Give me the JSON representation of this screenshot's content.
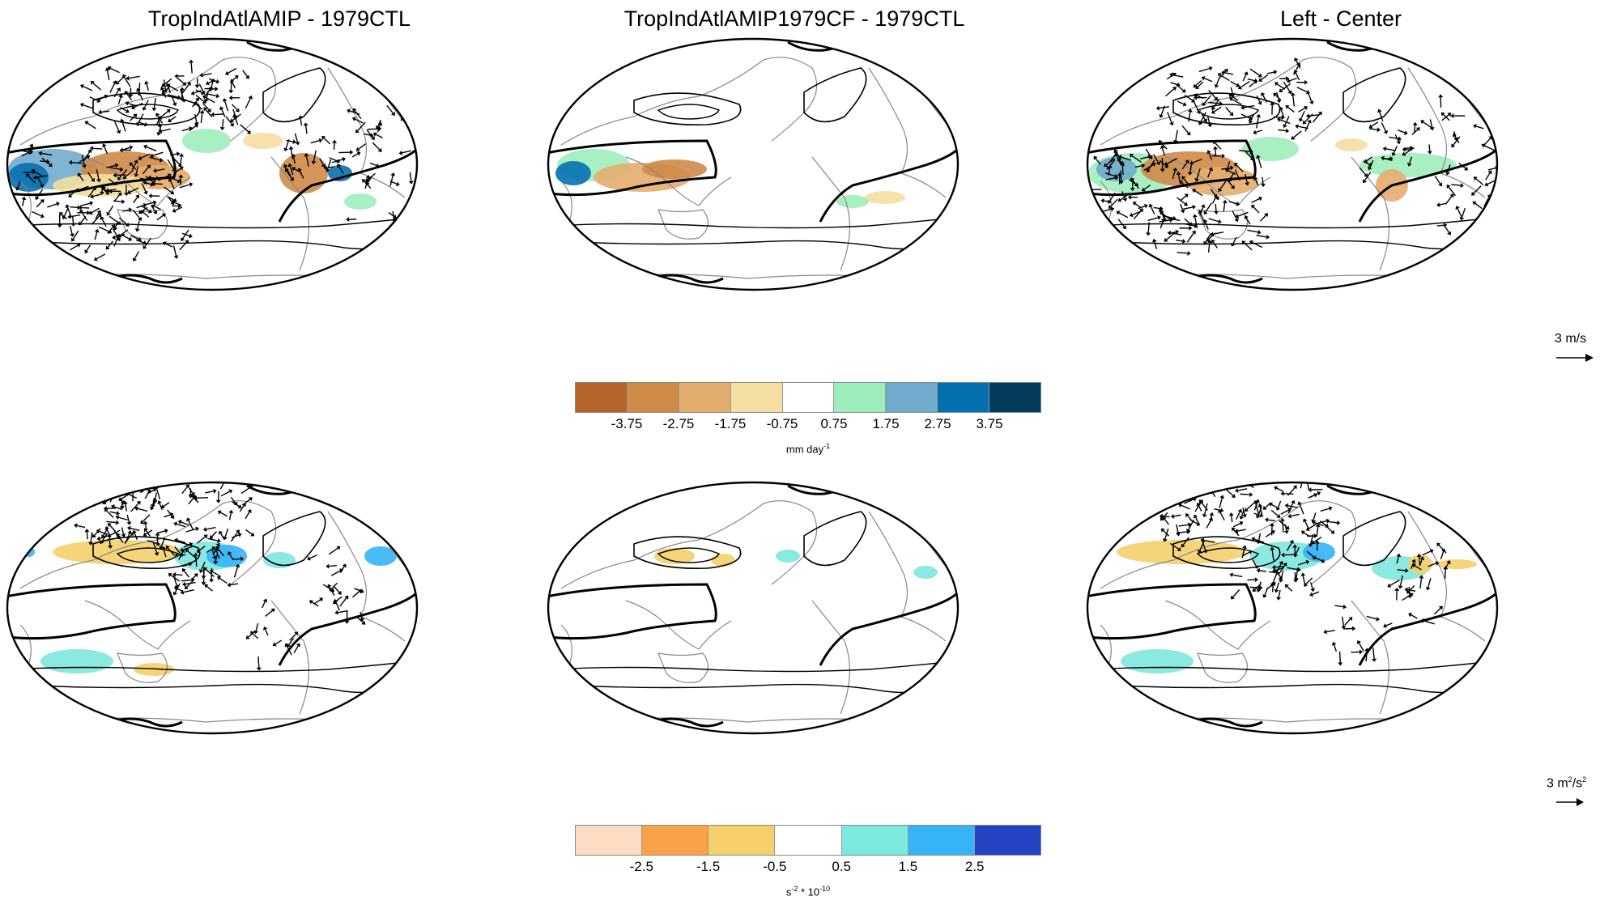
{
  "titles": {
    "left": "TropIndAtlAMIP - 1979CTL",
    "center": "TropIndAtlAMIP1979CF - 1979CTL",
    "right": "Left - Center"
  },
  "reference_vectors": {
    "top": "3 m/s",
    "bottom_base": "3 m",
    "bottom_sup1": "2",
    "bottom_mid": "/s",
    "bottom_sup2": "2"
  },
  "colorbars": {
    "precip": {
      "colors": [
        "#b5652a",
        "#cf8a48",
        "#e4ad6e",
        "#f4dea0",
        "#ffffff",
        "#9eeebd",
        "#70abcd",
        "#0570b0",
        "#033b5c"
      ],
      "tick_labels": [
        "-3.75",
        "-2.75",
        "-1.75",
        "-0.75",
        "0.75",
        "1.75",
        "2.75",
        "3.75"
      ],
      "units_base": "mm day",
      "units_sup": "-1"
    },
    "rws": {
      "colors": [
        "#fddcc4",
        "#f9a247",
        "#f5cf6a",
        "#ffffff",
        "#7de8de",
        "#36b3f7",
        "#2444c4"
      ],
      "tick_labels": [
        "-2.5",
        "-1.5",
        "-0.5",
        "0.5",
        "1.5",
        "2.5"
      ],
      "units_pre": "s",
      "units_sup1": "-2",
      "units_mid": " * 10",
      "units_sup2": "-10"
    }
  }
}
